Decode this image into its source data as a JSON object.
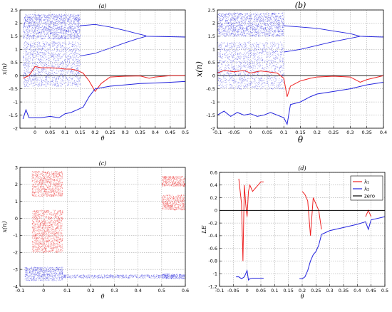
{
  "chart_data": [
    {
      "id": "a",
      "type": "scatter",
      "title": "(a)",
      "xlabel": "θ",
      "ylabel": "x(n)",
      "xlim": [
        -0.05,
        0.5
      ],
      "ylim": [
        -2,
        2.5
      ],
      "xticks": [
        0,
        0.05,
        0.1,
        0.15,
        0.2,
        0.25,
        0.3,
        0.35,
        0.4,
        0.45,
        0.5
      ],
      "xtick_labels": [
        "0",
        "0.05",
        "0.1",
        "0.15",
        "0.2",
        "0.25",
        "0.3",
        "0.35",
        "0.4",
        "0.45",
        "0.5"
      ],
      "yticks": [
        -2,
        -1.5,
        -1,
        -0.5,
        0,
        0.5,
        1,
        1.5,
        2,
        2.5
      ],
      "ytick_labels": [
        "-2",
        "-1.5",
        "-1",
        "-0.5",
        "0",
        "0.5",
        "1",
        "1.5",
        "2",
        "2.5"
      ],
      "grid": true,
      "zero_line": true,
      "series": [
        {
          "color": "#2222dd",
          "style": "bifurcation",
          "chaos_x": [
            -0.04,
            0.15
          ],
          "chaos_y": [
            [
              1.4,
              2.35
            ],
            [
              -0.4,
              1.3
            ]
          ],
          "branches": [
            {
              "x": [
                0.15,
                0.2,
                0.25,
                0.3,
                0.34,
                0.37
              ],
              "y": [
                1.9,
                1.95,
                1.85,
                1.72,
                1.6,
                1.52
              ]
            },
            {
              "x": [
                0.15,
                0.2,
                0.25,
                0.3,
                0.34,
                0.37
              ],
              "y": [
                0.75,
                0.85,
                1.05,
                1.25,
                1.4,
                1.5
              ]
            },
            {
              "x": [
                0.37,
                0.42,
                0.46,
                0.5
              ],
              "y": [
                1.5,
                1.49,
                1.48,
                1.47
              ]
            }
          ]
        },
        {
          "color": "#ee2222",
          "style": "line",
          "x": [
            -0.04,
            -0.02,
            0.0,
            0.02,
            0.05,
            0.08,
            0.1,
            0.12,
            0.14,
            0.16,
            0.18,
            0.2,
            0.22,
            0.25,
            0.3,
            0.35,
            0.38,
            0.4,
            0.45,
            0.5
          ],
          "y": [
            -0.1,
            0.0,
            0.35,
            0.3,
            0.3,
            0.28,
            0.25,
            0.25,
            0.2,
            0.1,
            -0.2,
            -0.6,
            -0.3,
            -0.05,
            -0.02,
            -0.01,
            -0.1,
            -0.05,
            0.0,
            0.0
          ]
        },
        {
          "color": "#2222dd",
          "style": "line",
          "x": [
            -0.04,
            -0.03,
            -0.02,
            0.0,
            0.02,
            0.05,
            0.08,
            0.1,
            0.12,
            0.14,
            0.16,
            0.18,
            0.2,
            0.25,
            0.3,
            0.35,
            0.4,
            0.45,
            0.5
          ],
          "y": [
            -1.65,
            -1.3,
            -1.6,
            -1.6,
            -1.6,
            -1.55,
            -1.6,
            -1.45,
            -1.4,
            -1.3,
            -1.2,
            -0.8,
            -0.5,
            -0.4,
            -0.35,
            -0.3,
            -0.28,
            -0.25,
            -0.22
          ]
        }
      ]
    },
    {
      "id": "b",
      "type": "scatter",
      "title": "(b)",
      "xlabel": "θ",
      "ylabel": "x(n)",
      "xlim": [
        -0.1,
        0.4
      ],
      "ylim": [
        -2,
        2.5
      ],
      "xticks": [
        -0.1,
        -0.05,
        0,
        0.05,
        0.1,
        0.15,
        0.2,
        0.25,
        0.3,
        0.35,
        0.4
      ],
      "xtick_labels": [
        "-0.1",
        "-0.05",
        "0",
        "0.05",
        "0.1",
        "0.15",
        "0.2",
        "0.25",
        "0.3",
        "0.35",
        "0.4"
      ],
      "yticks": [
        -2,
        -1.5,
        -1,
        -0.5,
        0,
        0.5,
        1,
        1.5,
        2,
        2.5
      ],
      "ytick_labels": [
        "-2",
        "-1.5",
        "-1",
        "-0.5",
        "0",
        "0.5",
        "1",
        "1.5",
        "2",
        "2.5"
      ],
      "grid": true,
      "zero_line": true,
      "series": [
        {
          "color": "#2222dd",
          "style": "bifurcation",
          "chaos_x": [
            -0.1,
            0.1
          ],
          "chaos_y": [
            [
              1.5,
              2.4
            ],
            [
              -0.5,
              1.3
            ]
          ],
          "branches": [
            {
              "x": [
                0.1,
                0.15,
                0.2,
                0.25,
                0.3,
                0.33
              ],
              "y": [
                1.9,
                1.85,
                1.8,
                1.7,
                1.6,
                1.5
              ]
            },
            {
              "x": [
                0.1,
                0.15,
                0.2,
                0.25,
                0.3,
                0.33
              ],
              "y": [
                0.9,
                1.0,
                1.15,
                1.3,
                1.42,
                1.5
              ]
            },
            {
              "x": [
                0.33,
                0.37,
                0.4
              ],
              "y": [
                1.5,
                1.48,
                1.47
              ]
            }
          ]
        },
        {
          "color": "#ee2222",
          "style": "line",
          "x": [
            -0.1,
            -0.08,
            -0.05,
            -0.02,
            0.0,
            0.03,
            0.05,
            0.08,
            0.1,
            0.11,
            0.12,
            0.15,
            0.18,
            0.2,
            0.25,
            0.3,
            0.33,
            0.35,
            0.4
          ],
          "y": [
            0.1,
            0.2,
            0.15,
            0.2,
            0.1,
            0.18,
            0.15,
            0.1,
            -0.1,
            -0.8,
            -0.4,
            -0.2,
            -0.1,
            -0.05,
            -0.02,
            -0.05,
            -0.25,
            -0.15,
            0.0
          ]
        },
        {
          "color": "#2222dd",
          "style": "line",
          "x": [
            -0.1,
            -0.08,
            -0.06,
            -0.04,
            -0.02,
            0.0,
            0.02,
            0.04,
            0.06,
            0.08,
            0.1,
            0.11,
            0.12,
            0.15,
            0.18,
            0.2,
            0.25,
            0.3,
            0.35,
            0.4
          ],
          "y": [
            -1.5,
            -1.35,
            -1.55,
            -1.4,
            -1.5,
            -1.45,
            -1.55,
            -1.5,
            -1.4,
            -1.5,
            -1.6,
            -1.85,
            -1.1,
            -1.0,
            -0.8,
            -0.7,
            -0.6,
            -0.5,
            -0.35,
            -0.25
          ]
        }
      ]
    },
    {
      "id": "c",
      "type": "scatter",
      "title": "(c)",
      "xlabel": "θ",
      "ylabel": "x(n)",
      "xlim": [
        -0.1,
        0.6
      ],
      "ylim": [
        -4,
        3
      ],
      "xticks": [
        -0.1,
        0,
        0.1,
        0.2,
        0.3,
        0.4,
        0.5,
        0.6
      ],
      "xtick_labels": [
        "-0.1",
        "0",
        "0.1",
        "0.2",
        "0.3",
        "0.4",
        "0.5",
        "0.6"
      ],
      "yticks": [
        -4,
        -3,
        -2,
        -1,
        0,
        1,
        2,
        3
      ],
      "ytick_labels": [
        "-4",
        "-3",
        "-2",
        "-1",
        "0",
        "1",
        "2",
        "3"
      ],
      "grid": true,
      "zero_line": false,
      "series": [
        {
          "color": "#ee2222",
          "style": "bands",
          "bands": [
            {
              "x": [
                -0.05,
                0.08
              ],
              "y": [
                1.3,
                2.8
              ]
            },
            {
              "x": [
                -0.05,
                0.08
              ],
              "y": [
                -2.0,
                0.5
              ]
            },
            {
              "x": [
                0.5,
                0.6
              ],
              "y": [
                1.9,
                2.5
              ]
            },
            {
              "x": [
                0.5,
                0.6
              ],
              "y": [
                0.5,
                1.4
              ]
            }
          ]
        },
        {
          "color": "#2222dd",
          "style": "bands",
          "bands": [
            {
              "x": [
                -0.08,
                0.08
              ],
              "y": [
                -3.65,
                -2.85
              ]
            },
            {
              "x": [
                0.08,
                0.5
              ],
              "y": [
                -3.5,
                -3.3
              ]
            },
            {
              "x": [
                0.5,
                0.6
              ],
              "y": [
                -3.55,
                -3.25
              ]
            }
          ]
        }
      ]
    },
    {
      "id": "d",
      "type": "line",
      "title": "(d)",
      "xlabel": "θ",
      "ylabel": "LE",
      "xlim": [
        -0.1,
        0.5
      ],
      "ylim": [
        -1.2,
        0.6
      ],
      "xticks": [
        -0.1,
        -0.05,
        0,
        0.05,
        0.1,
        0.15,
        0.2,
        0.25,
        0.3,
        0.35,
        0.4,
        0.45,
        0.5
      ],
      "xtick_labels": [
        "-0.1",
        "-0.05",
        "0",
        "0.05",
        "0.1",
        "0.15",
        "0.2",
        "0.25",
        "0.3",
        "0.35",
        "0.4",
        "0.45",
        "0.5"
      ],
      "yticks": [
        -1.2,
        -1,
        -0.8,
        -0.6,
        -0.4,
        -0.2,
        0,
        0.2,
        0.4,
        0.6
      ],
      "ytick_labels": [
        "-1.2",
        "-1",
        "-0.8",
        "-0.6",
        "-0.4",
        "-0.2",
        "0",
        "0.2",
        "0.4",
        "0.6"
      ],
      "grid": true,
      "legend": {
        "position": "top-right",
        "entries": [
          {
            "label": "λ₁",
            "color": "#ee2222"
          },
          {
            "label": "λ₂",
            "color": "#2222dd"
          },
          {
            "label": "zero",
            "color": "#000000"
          }
        ]
      },
      "series": [
        {
          "name": "λ₁",
          "color": "#ee2222",
          "segments": [
            {
              "x": [
                -0.03,
                -0.025,
                -0.02,
                -0.015,
                -0.01,
                -0.005,
                0.0,
                0.005,
                0.01,
                0.02,
                0.03,
                0.04,
                0.05,
                0.06
              ],
              "y": [
                0.5,
                0.3,
                0.1,
                -0.8,
                0.4,
                0.1,
                -0.1,
                0.3,
                0.4,
                0.3,
                0.35,
                0.4,
                0.45,
                0.45
              ]
            },
            {
              "x": [
                0.2,
                0.21,
                0.22,
                0.23,
                0.24,
                0.25,
                0.26,
                0.27
              ],
              "y": [
                0.3,
                0.25,
                0.15,
                -0.4,
                0.2,
                0.1,
                0.0,
                -0.3
              ]
            },
            {
              "x": [
                0.43,
                0.44,
                0.45
              ],
              "y": [
                -0.1,
                0.0,
                -0.1
              ]
            }
          ]
        },
        {
          "name": "λ₂",
          "color": "#2222dd",
          "segments": [
            {
              "x": [
                -0.04,
                -0.03,
                -0.02,
                -0.01,
                0.0,
                0.005,
                0.01,
                0.02,
                0.04,
                0.06
              ],
              "y": [
                -1.05,
                -1.05,
                -1.08,
                -1.05,
                -0.95,
                -1.1,
                -1.08,
                -1.07,
                -1.07,
                -1.07
              ]
            },
            {
              "x": [
                0.19,
                0.2,
                0.21,
                0.22,
                0.23,
                0.24,
                0.25,
                0.26,
                0.27,
                0.3,
                0.35,
                0.4,
                0.43,
                0.44,
                0.45,
                0.5
              ],
              "y": [
                -1.08,
                -1.08,
                -1.05,
                -0.95,
                -0.8,
                -0.7,
                -0.65,
                -0.55,
                -0.38,
                -0.32,
                -0.27,
                -0.22,
                -0.18,
                -0.3,
                -0.15,
                -0.1
              ]
            }
          ]
        },
        {
          "name": "zero",
          "color": "#000000",
          "segments": [
            {
              "x": [
                -0.1,
                0.5
              ],
              "y": [
                0,
                0
              ]
            }
          ]
        }
      ]
    }
  ]
}
